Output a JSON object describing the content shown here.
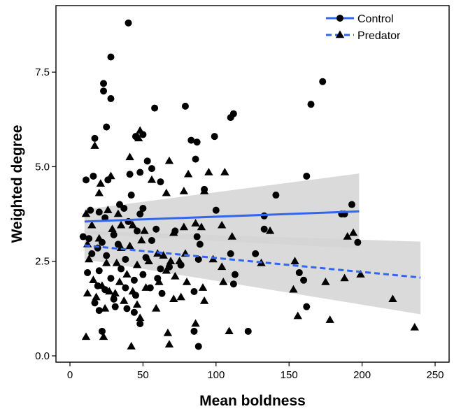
{
  "chart_data": {
    "type": "scatter",
    "title": "",
    "xlabel": "Mean boldness",
    "ylabel": "Weighted degree",
    "xlim": [
      0,
      250
    ],
    "ylim": [
      0,
      9
    ],
    "xticks": [
      0,
      50,
      100,
      150,
      200,
      250
    ],
    "xtick_labels": [
      "0",
      "50",
      "100",
      "150",
      "200",
      "250"
    ],
    "yticks": [
      0.0,
      2.5,
      5.0,
      7.5
    ],
    "ytick_labels": [
      "0.0",
      "2.5",
      "5.0",
      "7.5"
    ],
    "grid": false,
    "legend_position": "top-right",
    "colors": {
      "line": "#3366ee",
      "ribbon": "#d3d3d3",
      "points": "#000000"
    },
    "series": [
      {
        "name": "Control",
        "marker": "circle",
        "line_style": "solid",
        "trend": {
          "x": [
            10,
            198
          ],
          "y": [
            3.55,
            3.82
          ]
        },
        "ribbon": {
          "x": [
            10,
            198
          ],
          "upper": [
            3.87,
            4.82
          ],
          "lower": [
            3.22,
            2.84
          ]
        },
        "points": [
          [
            40,
            8.8
          ],
          [
            28,
            7.9
          ],
          [
            23,
            7.2
          ],
          [
            23,
            7.0
          ],
          [
            28,
            6.8
          ],
          [
            58,
            6.55
          ],
          [
            25,
            6.05
          ],
          [
            17,
            5.75
          ],
          [
            45,
            5.8
          ],
          [
            50,
            5.85
          ],
          [
            83,
            5.7
          ],
          [
            87,
            5.65
          ],
          [
            99,
            5.8
          ],
          [
            110,
            6.3
          ],
          [
            112,
            6.4
          ],
          [
            79,
            6.6
          ],
          [
            165,
            6.65
          ],
          [
            173,
            7.25
          ],
          [
            11,
            4.65
          ],
          [
            16,
            4.75
          ],
          [
            26,
            4.65
          ],
          [
            41,
            4.8
          ],
          [
            42,
            4.25
          ],
          [
            48,
            4.85
          ],
          [
            53,
            5.15
          ],
          [
            56,
            4.95
          ],
          [
            62,
            4.6
          ],
          [
            86,
            5.2
          ],
          [
            92,
            4.4
          ],
          [
            14,
            3.85
          ],
          [
            20,
            3.8
          ],
          [
            24,
            3.65
          ],
          [
            34,
            4.0
          ],
          [
            37,
            3.9
          ],
          [
            40,
            3.55
          ],
          [
            48,
            3.75
          ],
          [
            50,
            3.9
          ],
          [
            59,
            3.35
          ],
          [
            13,
            3.1
          ],
          [
            9,
            3.15
          ],
          [
            22,
            3.0
          ],
          [
            30,
            3.2
          ],
          [
            33,
            2.95
          ],
          [
            46,
            3.3
          ],
          [
            56,
            3.05
          ],
          [
            72,
            3.3
          ],
          [
            87,
            3.15
          ],
          [
            89,
            2.95
          ],
          [
            100,
            3.85
          ],
          [
            133,
            3.7
          ],
          [
            141,
            4.25
          ],
          [
            162,
            4.75
          ],
          [
            186,
            3.75
          ],
          [
            193,
            4.0
          ],
          [
            188,
            3.75
          ],
          [
            197,
            3.0
          ],
          [
            15,
            2.7
          ],
          [
            19,
            2.85
          ],
          [
            25,
            2.65
          ],
          [
            38,
            2.55
          ],
          [
            52,
            2.6
          ],
          [
            62,
            2.3
          ],
          [
            68,
            2.35
          ],
          [
            76,
            2.4
          ],
          [
            88,
            2.55
          ],
          [
            110,
            2.7
          ],
          [
            127,
            2.7
          ],
          [
            133,
            3.35
          ],
          [
            12,
            2.2
          ],
          [
            20,
            2.25
          ],
          [
            28,
            2.05
          ],
          [
            35,
            2.3
          ],
          [
            44,
            2.0
          ],
          [
            50,
            2.15
          ],
          [
            60,
            2.05
          ],
          [
            19,
            1.85
          ],
          [
            24,
            1.75
          ],
          [
            30,
            1.5
          ],
          [
            38,
            1.8
          ],
          [
            45,
            1.6
          ],
          [
            55,
            1.8
          ],
          [
            63,
            1.65
          ],
          [
            85,
            1.7
          ],
          [
            112,
            1.9
          ],
          [
            157,
            2.2
          ],
          [
            160,
            2.0
          ],
          [
            17,
            1.4
          ],
          [
            20,
            1.2
          ],
          [
            31,
            1.3
          ],
          [
            39,
            1.25
          ],
          [
            44,
            1.15
          ],
          [
            48,
            0.85
          ],
          [
            22,
            0.65
          ],
          [
            85,
            0.65
          ],
          [
            88,
            0.25
          ],
          [
            122,
            0.65
          ],
          [
            162,
            1.3
          ],
          [
            113,
            2.15
          ]
        ]
      },
      {
        "name": "Predator",
        "marker": "triangle",
        "line_style": "dashed",
        "trend": {
          "x": [
            10,
            240
          ],
          "y": [
            2.92,
            2.07
          ]
        },
        "ribbon": {
          "x": [
            10,
            240
          ],
          "upper": [
            3.3,
            3.02
          ],
          "lower": [
            2.55,
            1.1
          ]
        },
        "points": [
          [
            17,
            5.55
          ],
          [
            48,
            5.95
          ],
          [
            68,
            5.15
          ],
          [
            47,
            5.75
          ],
          [
            41,
            5.25
          ],
          [
            56,
            4.65
          ],
          [
            21,
            4.55
          ],
          [
            28,
            4.75
          ],
          [
            66,
            4.3
          ],
          [
            78,
            4.35
          ],
          [
            81,
            4.8
          ],
          [
            95,
            4.85
          ],
          [
            106,
            4.85
          ],
          [
            92,
            4.35
          ],
          [
            11,
            3.75
          ],
          [
            15,
            3.45
          ],
          [
            20,
            4.3
          ],
          [
            26,
            3.85
          ],
          [
            33,
            3.75
          ],
          [
            35,
            3.45
          ],
          [
            43,
            3.45
          ],
          [
            51,
            3.3
          ],
          [
            71,
            3.25
          ],
          [
            78,
            3.4
          ],
          [
            86,
            3.5
          ],
          [
            90,
            3.4
          ],
          [
            104,
            3.45
          ],
          [
            111,
            3.15
          ],
          [
            137,
            3.3
          ],
          [
            190,
            3.15
          ],
          [
            194,
            3.25
          ],
          [
            12,
            2.95
          ],
          [
            20,
            3.1
          ],
          [
            29,
            3.35
          ],
          [
            35,
            2.85
          ],
          [
            41,
            2.9
          ],
          [
            49,
            3.05
          ],
          [
            60,
            2.7
          ],
          [
            64,
            2.65
          ],
          [
            69,
            2.5
          ],
          [
            75,
            2.5
          ],
          [
            79,
            2.7
          ],
          [
            13,
            2.55
          ],
          [
            25,
            2.45
          ],
          [
            32,
            2.45
          ],
          [
            39,
            2.15
          ],
          [
            46,
            2.4
          ],
          [
            54,
            2.5
          ],
          [
            66,
            2.25
          ],
          [
            72,
            2.1
          ],
          [
            98,
            2.55
          ],
          [
            104,
            2.35
          ],
          [
            131,
            2.45
          ],
          [
            154,
            2.5
          ],
          [
            16,
            2.0
          ],
          [
            22,
            1.85
          ],
          [
            27,
            1.7
          ],
          [
            34,
            1.95
          ],
          [
            43,
            1.7
          ],
          [
            52,
            1.8
          ],
          [
            61,
            1.95
          ],
          [
            80,
            1.95
          ],
          [
            91,
            1.8
          ],
          [
            105,
            1.95
          ],
          [
            153,
            1.75
          ],
          [
            175,
            1.95
          ],
          [
            188,
            2.05
          ],
          [
            199,
            2.15
          ],
          [
            12,
            1.65
          ],
          [
            18,
            1.55
          ],
          [
            24,
            1.25
          ],
          [
            31,
            1.65
          ],
          [
            37,
            1.45
          ],
          [
            46,
            1.35
          ],
          [
            59,
            1.25
          ],
          [
            71,
            1.5
          ],
          [
            76,
            1.55
          ],
          [
            92,
            1.45
          ],
          [
            156,
            1.05
          ],
          [
            178,
            0.95
          ],
          [
            221,
            1.5
          ],
          [
            236,
            0.75
          ],
          [
            11,
            0.5
          ],
          [
            23,
            0.5
          ],
          [
            42,
            0.25
          ],
          [
            48,
            1.0
          ],
          [
            67,
            0.6
          ],
          [
            68,
            0.3
          ],
          [
            109,
            0.65
          ],
          [
            86,
            0.85
          ]
        ]
      }
    ]
  }
}
